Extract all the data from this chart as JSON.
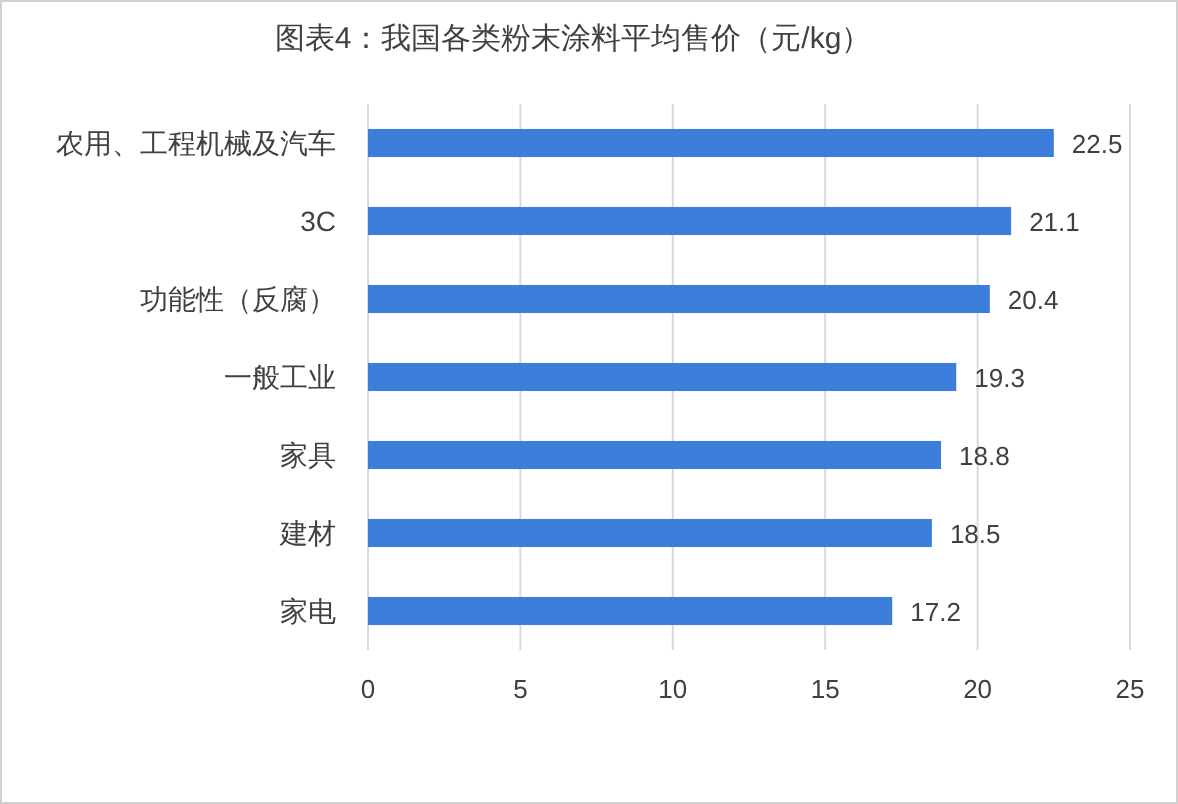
{
  "chart_data": {
    "type": "bar",
    "orientation": "horizontal",
    "title": "图表4：我国各类粉末涂料平均售价（元/kg）",
    "categories": [
      "农用、工程机械及汽车",
      "3C",
      "功能性（反腐）",
      "一般工业",
      "家具",
      "建材",
      "家电"
    ],
    "values": [
      22.5,
      21.1,
      20.4,
      19.3,
      18.8,
      18.5,
      17.2
    ],
    "color": "#3d7edb",
    "xlim": [
      0,
      25
    ],
    "xticks": [
      0,
      5,
      10,
      15,
      20,
      25
    ],
    "grid": "x",
    "data_labels": true
  }
}
